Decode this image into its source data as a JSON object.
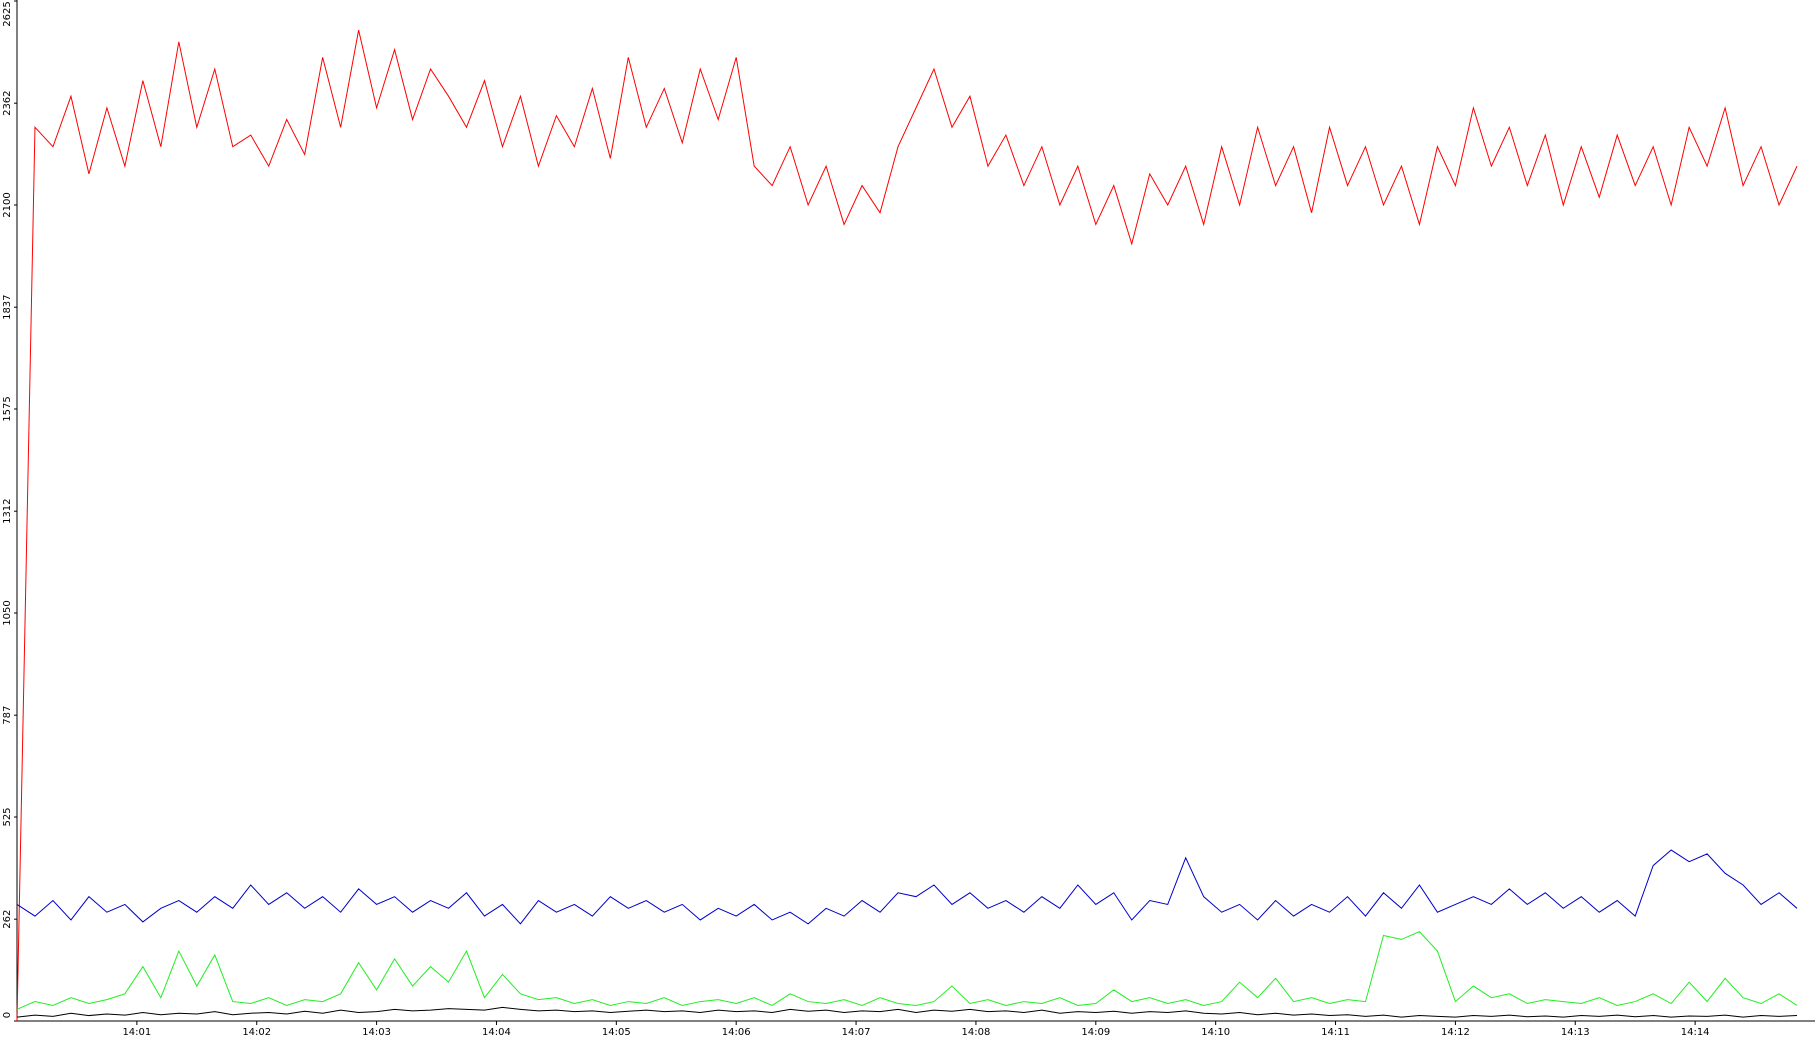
{
  "chart_data": {
    "type": "line",
    "x": [
      0,
      0.15,
      0.3,
      0.45,
      0.6,
      0.75,
      0.9,
      1.05,
      1.2,
      1.35,
      1.5,
      1.65,
      1.8,
      1.95,
      2.1,
      2.25,
      2.4,
      2.55,
      2.7,
      2.85,
      3,
      3.15,
      3.3,
      3.45,
      3.6,
      3.75,
      3.9,
      4.05,
      4.2,
      4.35,
      4.5,
      4.65,
      4.8,
      4.95,
      5.1,
      5.25,
      5.4,
      5.55,
      5.7,
      5.85,
      6,
      6.15,
      6.3,
      6.45,
      6.6,
      6.75,
      6.9,
      7.05,
      7.2,
      7.35,
      7.5,
      7.65,
      7.8,
      7.95,
      8.1,
      8.25,
      8.4,
      8.55,
      8.7,
      8.85,
      9,
      9.15,
      9.3,
      9.45,
      9.6,
      9.75,
      9.9,
      10.05,
      10.2,
      10.35,
      10.5,
      10.65,
      10.8,
      10.95,
      11.1,
      11.25,
      11.4,
      11.55,
      11.7,
      11.85,
      12,
      12.15,
      12.3,
      12.45,
      12.6,
      12.75,
      12.9,
      13.05,
      13.2,
      13.35,
      13.5,
      13.65,
      13.8,
      13.95,
      14.1,
      14.25,
      14.4,
      14.55,
      14.7,
      14.85
    ],
    "series": [
      {
        "color": "#ff0000",
        "values": [
          0,
          2300,
          2250,
          2380,
          2180,
          2350,
          2200,
          2420,
          2250,
          2520,
          2300,
          2450,
          2250,
          2280,
          2200,
          2320,
          2230,
          2480,
          2300,
          2550,
          2350,
          2500,
          2320,
          2450,
          2380,
          2300,
          2420,
          2250,
          2380,
          2200,
          2330,
          2250,
          2400,
          2220,
          2480,
          2300,
          2400,
          2260,
          2450,
          2320,
          2480,
          2200,
          2150,
          2250,
          2100,
          2200,
          2050,
          2150,
          2080,
          2250,
          2350,
          2450,
          2300,
          2380,
          2200,
          2280,
          2150,
          2250,
          2100,
          2200,
          2050,
          2150,
          2000,
          2180,
          2100,
          2200,
          2050,
          2250,
          2100,
          2300,
          2150,
          2250,
          2080,
          2300,
          2150,
          2250,
          2100,
          2200,
          2050,
          2250,
          2150,
          2350,
          2200,
          2300,
          2150,
          2280,
          2100,
          2250,
          2120,
          2280,
          2150,
          2250,
          2100,
          2300,
          2200,
          2350,
          2150,
          2250,
          2100,
          2200
        ]
      },
      {
        "color": "#0000cc",
        "values": [
          300,
          270,
          310,
          260,
          320,
          280,
          300,
          255,
          290,
          310,
          280,
          320,
          290,
          350,
          300,
          330,
          290,
          320,
          280,
          340,
          300,
          320,
          280,
          310,
          290,
          330,
          270,
          300,
          250,
          310,
          280,
          300,
          270,
          320,
          290,
          310,
          280,
          300,
          260,
          290,
          270,
          300,
          260,
          280,
          250,
          290,
          270,
          310,
          280,
          330,
          320,
          350,
          300,
          330,
          290,
          310,
          280,
          320,
          290,
          350,
          300,
          330,
          260,
          310,
          300,
          420,
          320,
          280,
          300,
          260,
          310,
          270,
          300,
          280,
          320,
          270,
          330,
          290,
          350,
          280,
          300,
          320,
          300,
          340,
          300,
          330,
          290,
          320,
          280,
          310,
          270,
          400,
          440,
          410,
          430,
          380,
          350,
          300,
          330,
          290
        ]
      },
      {
        "color": "#22ee22",
        "values": [
          30,
          50,
          40,
          60,
          45,
          55,
          70,
          140,
          60,
          180,
          90,
          170,
          50,
          45,
          60,
          40,
          55,
          50,
          70,
          150,
          80,
          160,
          90,
          140,
          100,
          180,
          60,
          120,
          70,
          55,
          60,
          45,
          55,
          40,
          50,
          45,
          60,
          40,
          50,
          55,
          45,
          60,
          40,
          70,
          50,
          45,
          55,
          40,
          60,
          45,
          40,
          50,
          90,
          45,
          55,
          40,
          50,
          45,
          60,
          40,
          45,
          80,
          50,
          60,
          45,
          55,
          40,
          50,
          100,
          60,
          110,
          50,
          60,
          45,
          55,
          50,
          220,
          210,
          230,
          180,
          50,
          90,
          60,
          70,
          45,
          55,
          50,
          45,
          60,
          40,
          50,
          70,
          45,
          100,
          50,
          110,
          60,
          45,
          70,
          40
        ]
      },
      {
        "color": "#000000",
        "values": [
          10,
          15,
          12,
          20,
          14,
          18,
          15,
          22,
          16,
          20,
          18,
          24,
          16,
          20,
          22,
          18,
          25,
          20,
          28,
          22,
          24,
          30,
          26,
          28,
          32,
          30,
          28,
          35,
          30,
          26,
          28,
          24,
          26,
          22,
          25,
          28,
          24,
          26,
          22,
          28,
          24,
          26,
          22,
          30,
          25,
          28,
          22,
          26,
          24,
          30,
          22,
          28,
          25,
          30,
          24,
          26,
          22,
          28,
          20,
          24,
          22,
          25,
          20,
          24,
          22,
          26,
          20,
          18,
          22,
          16,
          20,
          15,
          18,
          14,
          16,
          12,
          15,
          10,
          14,
          12,
          10,
          14,
          12,
          15,
          11,
          13,
          10,
          14,
          12,
          15,
          11,
          14,
          10,
          13,
          12,
          15,
          10,
          14,
          12,
          14
        ]
      }
    ],
    "xlim": [
      0,
      15
    ],
    "xticks": [
      {
        "value": 1,
        "label": "14:01"
      },
      {
        "value": 2,
        "label": "14:02"
      },
      {
        "value": 3,
        "label": "14:03"
      },
      {
        "value": 4,
        "label": "14:04"
      },
      {
        "value": 5,
        "label": "14:05"
      },
      {
        "value": 6,
        "label": "14:06"
      },
      {
        "value": 7,
        "label": "14:07"
      },
      {
        "value": 8,
        "label": "14:08"
      },
      {
        "value": 9,
        "label": "14:09"
      },
      {
        "value": 10,
        "label": "14:10"
      },
      {
        "value": 11,
        "label": "14:11"
      },
      {
        "value": 12,
        "label": "14:12"
      },
      {
        "value": 13,
        "label": "14:13"
      },
      {
        "value": 14,
        "label": "14:14"
      }
    ],
    "ylim": [
      0,
      2625
    ],
    "yticks": [
      0,
      262,
      525,
      787,
      1050,
      1312,
      1575,
      1837,
      2100,
      2362,
      2625
    ]
  }
}
